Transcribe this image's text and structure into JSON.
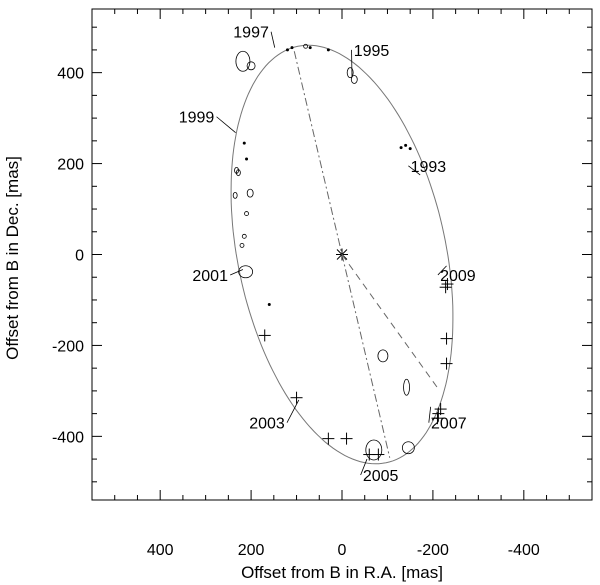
{
  "chart_data": {
    "type": "scatter",
    "xlabel": "Offset from B in R.A. [mas]",
    "ylabel": "Offset from B in Dec. [mas]",
    "xlim": [
      550,
      -550
    ],
    "ylim": [
      -540,
      540
    ],
    "x_ticks": [
      400,
      200,
      0,
      -200,
      -400
    ],
    "x_tick_labels": [
      "400",
      "200",
      "0",
      "-200",
      "-400"
    ],
    "y_ticks": [
      400,
      200,
      0,
      -200,
      -400
    ],
    "y_tick_labels": [
      "400",
      "200",
      "0",
      "-200",
      "-400"
    ],
    "grid": false,
    "orbit": {
      "center": [
        0,
        0
      ],
      "a_axis_end": [
        97,
        458
      ],
      "b_axis_end": [
        -224,
        46
      ],
      "periastron": [
        105,
        447
      ],
      "apastron": [
        -105,
        -447
      ]
    },
    "primary_star": [
      0,
      0
    ],
    "series": [
      {
        "marker": "plus",
        "x": [
          -232,
          -228,
          -230,
          -230,
          -217,
          -212,
          -210,
          -80,
          -60,
          -10,
          30,
          100,
          170
        ],
        "y": [
          -65,
          -72,
          -185,
          -240,
          -340,
          -350,
          -360,
          -440,
          -440,
          -405,
          -405,
          -315,
          -178
        ]
      },
      {
        "marker": "ellipse",
        "x": [
          -142,
          -90,
          -27,
          -18,
          218,
          200,
          235,
          232,
          228,
          220,
          215,
          210,
          202,
          212,
          -70,
          -146,
          80
        ],
        "y": [
          -292,
          -223,
          385,
          400,
          425,
          415,
          130,
          185,
          180,
          20,
          40,
          90,
          135,
          -38,
          -430,
          -425,
          458
        ],
        "rx": [
          3,
          5,
          3,
          3,
          7,
          4,
          2,
          2,
          2,
          2,
          2,
          2,
          3,
          7,
          8,
          6,
          2
        ],
        "ry": [
          8,
          6,
          4,
          5,
          10,
          4,
          3,
          3,
          3,
          2,
          2,
          2,
          4,
          6,
          10,
          6,
          2
        ]
      },
      {
        "marker": "dot",
        "x": [
          110,
          120,
          70,
          30,
          215,
          210,
          160,
          -140,
          -130,
          -150
        ],
        "y": [
          455,
          450,
          455,
          450,
          245,
          210,
          -110,
          240,
          235,
          233
        ],
        "rx": [
          1.5,
          1.5,
          1.5,
          1.5,
          1.5,
          1.5,
          1.5,
          1.5,
          1.5,
          1.5
        ],
        "ry": [
          1.5,
          1.5,
          1.5,
          1.5,
          1.5,
          1.5,
          1.5,
          1.5,
          1.5,
          1.5
        ]
      }
    ],
    "line_of_nodes": {
      "from": [
        105,
        447
      ],
      "to": [
        -105,
        -447
      ]
    },
    "dashed_line": {
      "from": [
        0,
        0
      ],
      "to": [
        -215,
        -300
      ]
    },
    "annotations": [
      {
        "text": "1993",
        "label_at": [
          -190,
          195
        ],
        "point": [
          -172,
          175
        ]
      },
      {
        "text": "1995",
        "label_at": [
          -65,
          450
        ],
        "point": [
          -22,
          390
        ]
      },
      {
        "text": "1997",
        "label_at": [
          200,
          490
        ],
        "point": [
          148,
          455
        ]
      },
      {
        "text": "1999",
        "label_at": [
          320,
          303
        ],
        "point": [
          234,
          268
        ]
      },
      {
        "text": "2001",
        "label_at": [
          290,
          -45
        ],
        "point": [
          218,
          -33
        ]
      },
      {
        "text": "2003",
        "label_at": [
          165,
          -370
        ],
        "point": [
          95,
          -320
        ]
      },
      {
        "text": "2005",
        "label_at": [
          -85,
          -485
        ],
        "point": [
          -55,
          -450
        ]
      },
      {
        "text": "2007",
        "label_at": [
          -235,
          -370
        ],
        "point": [
          -195,
          -335
        ]
      },
      {
        "text": "2009",
        "label_at": [
          -255,
          -45
        ],
        "point": [
          -230,
          -25
        ]
      }
    ]
  }
}
